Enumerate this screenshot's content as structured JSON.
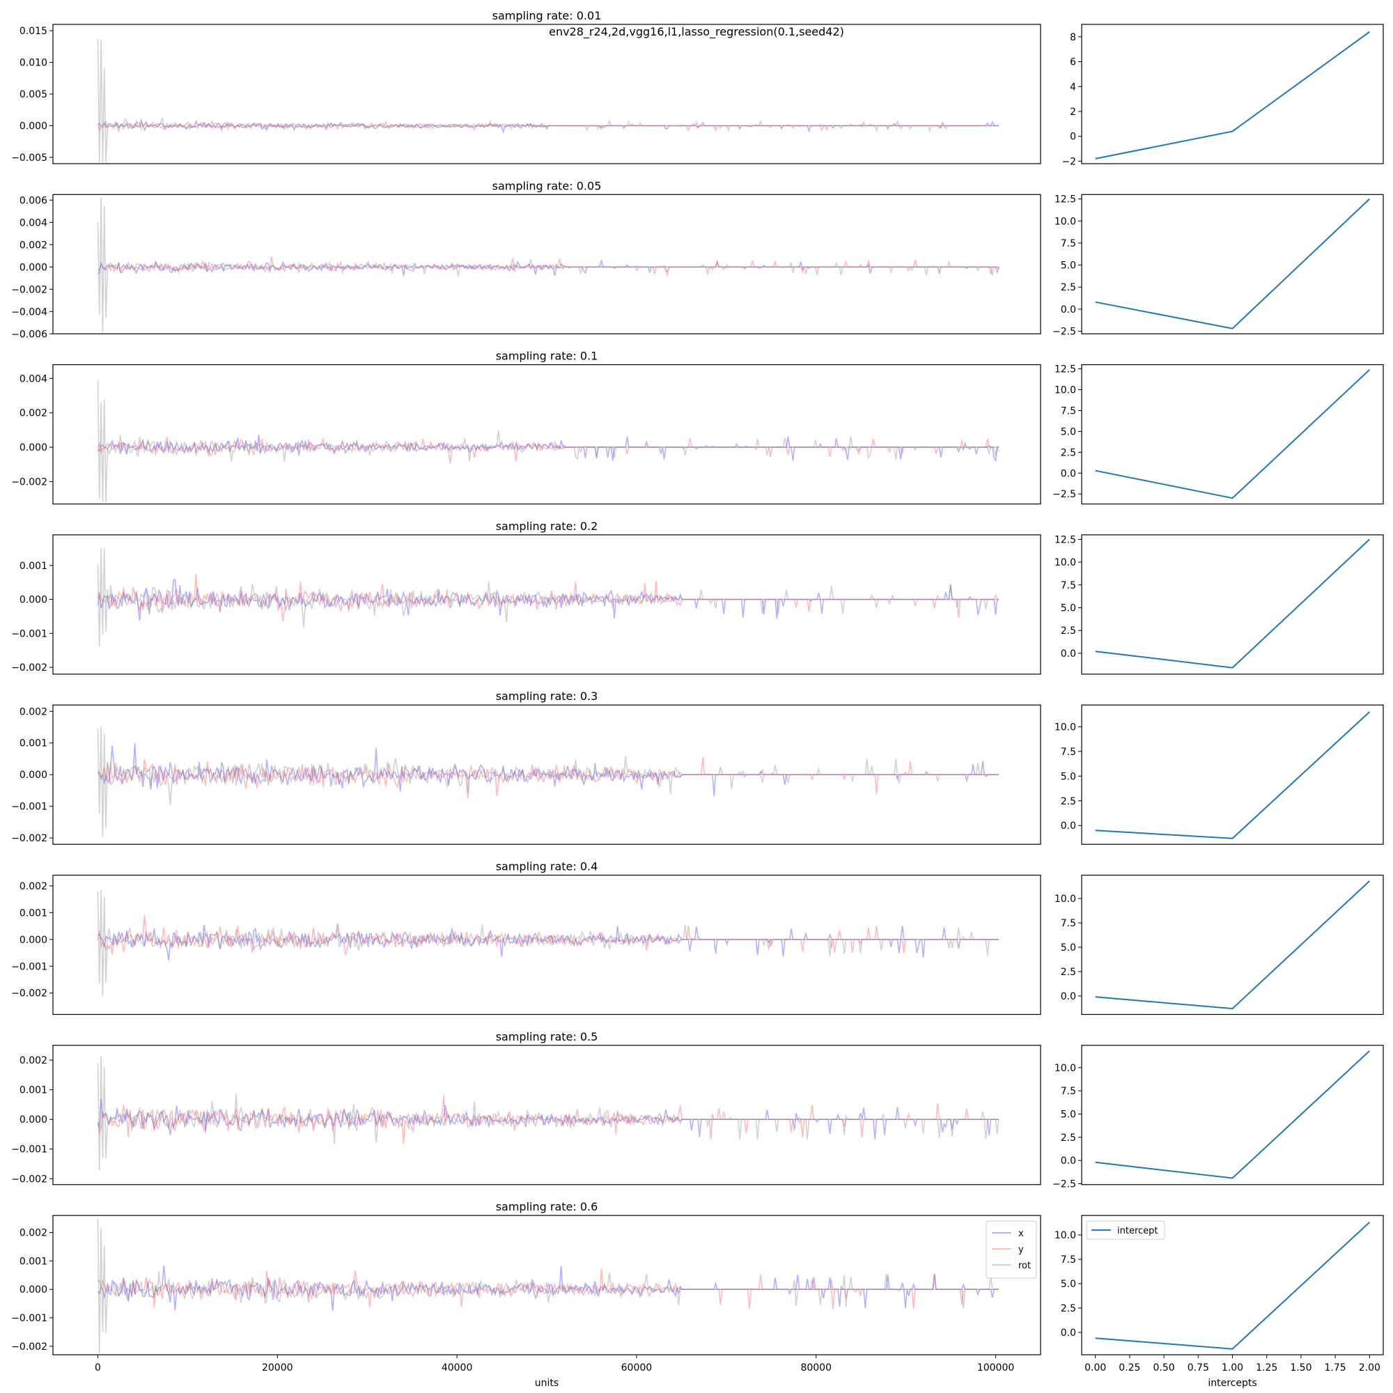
{
  "suptitle": "env28_r24,2d,vgg16,l1,lasso_regression(0.1,seed42)",
  "legend_left": [
    "x",
    "y",
    "rot"
  ],
  "legend_right": [
    "intercept"
  ],
  "colors": {
    "x": "#3333ff",
    "y": "#ff4d4d",
    "rot": "#888888",
    "intercept": "#1f77b4"
  },
  "chart_data": [
    {
      "type": "line",
      "title": "sampling rate: 0.01",
      "panel": "coefficients",
      "ylim": [
        -0.006,
        0.016
      ],
      "yticks": [
        -0.005,
        0.0,
        0.005,
        0.01,
        0.015
      ],
      "ytick_labels": [
        "−0.005",
        "0.000",
        "0.005",
        "0.010",
        "0.015"
      ],
      "xlim": [
        -5000,
        105000
      ],
      "active_until": 50000,
      "amplitude": 0.0006,
      "spike_scale": 0.0009,
      "max_spike": 0.0148,
      "series": [
        "x",
        "y",
        "rot"
      ]
    },
    {
      "type": "line",
      "title": "",
      "panel": "intercepts",
      "x": [
        0,
        1,
        2
      ],
      "y": [
        -1.8,
        0.4,
        8.4
      ],
      "ylim": [
        -2.2,
        9.0
      ],
      "yticks": [
        -2,
        0,
        2,
        4,
        6,
        8
      ],
      "ytick_labels": [
        "−2",
        "0",
        "2",
        "4",
        "6",
        "8"
      ]
    },
    {
      "type": "line",
      "title": "sampling rate: 0.05",
      "panel": "coefficients",
      "ylim": [
        -0.006,
        0.0065
      ],
      "yticks": [
        -0.006,
        -0.004,
        -0.002,
        0.0,
        0.002,
        0.004,
        0.006
      ],
      "ytick_labels": [
        "−0.006",
        "−0.004",
        "−0.002",
        "0.000",
        "0.002",
        "0.004",
        "0.006"
      ],
      "xlim": [
        -5000,
        105000
      ],
      "active_until": 52000,
      "amplitude": 0.00045,
      "spike_scale": 0.0008,
      "max_spike": 0.0064,
      "series": [
        "x",
        "y",
        "rot"
      ]
    },
    {
      "type": "line",
      "title": "",
      "panel": "intercepts",
      "x": [
        0,
        1,
        2
      ],
      "y": [
        0.8,
        -2.2,
        12.5
      ],
      "ylim": [
        -2.8,
        13.0
      ],
      "yticks": [
        -2.5,
        0.0,
        2.5,
        5.0,
        7.5,
        10.0,
        12.5
      ],
      "ytick_labels": [
        "−2.5",
        "0.0",
        "2.5",
        "5.0",
        "7.5",
        "10.0",
        "12.5"
      ]
    },
    {
      "type": "line",
      "title": "sampling rate: 0.1",
      "panel": "coefficients",
      "ylim": [
        -0.0033,
        0.0048
      ],
      "yticks": [
        -0.002,
        0.0,
        0.002,
        0.004
      ],
      "ytick_labels": [
        "−0.002",
        "0.000",
        "0.002",
        "0.004"
      ],
      "xlim": [
        -5000,
        105000
      ],
      "active_until": 52000,
      "amplitude": 0.00045,
      "spike_scale": 0.0008,
      "max_spike": 0.0046,
      "series": [
        "x",
        "y",
        "rot"
      ]
    },
    {
      "type": "line",
      "title": "",
      "panel": "intercepts",
      "x": [
        0,
        1,
        2
      ],
      "y": [
        0.3,
        -3.0,
        12.4
      ],
      "ylim": [
        -3.7,
        13.0
      ],
      "yticks": [
        -2.5,
        0.0,
        2.5,
        5.0,
        7.5,
        10.0,
        12.5
      ],
      "ytick_labels": [
        "−2.5",
        "0.0",
        "2.5",
        "5.0",
        "7.5",
        "10.0",
        "12.5"
      ]
    },
    {
      "type": "line",
      "title": "sampling rate: 0.2",
      "panel": "coefficients",
      "ylim": [
        -0.0022,
        0.0019
      ],
      "yticks": [
        -0.002,
        -0.001,
        0.0,
        0.001
      ],
      "ytick_labels": [
        "−0.002",
        "−0.001",
        "0.000",
        "0.001"
      ],
      "xlim": [
        -5000,
        105000
      ],
      "active_until": 65000,
      "amplitude": 0.00035,
      "spike_scale": 0.0006,
      "max_spike": 0.0016,
      "series": [
        "x",
        "y",
        "rot"
      ]
    },
    {
      "type": "line",
      "title": "",
      "panel": "intercepts",
      "x": [
        0,
        1,
        2
      ],
      "y": [
        0.2,
        -1.6,
        12.5
      ],
      "ylim": [
        -2.3,
        13.0
      ],
      "yticks": [
        0.0,
        2.5,
        5.0,
        7.5,
        10.0,
        12.5
      ],
      "ytick_labels": [
        "0.0",
        "2.5",
        "5.0",
        "7.5",
        "10.0",
        "12.5"
      ]
    },
    {
      "type": "line",
      "title": "sampling rate: 0.3",
      "panel": "coefficients",
      "ylim": [
        -0.0022,
        0.0022
      ],
      "yticks": [
        -0.002,
        -0.001,
        0.0,
        0.001,
        0.002
      ],
      "ytick_labels": [
        "−0.002",
        "−0.001",
        "0.000",
        "0.001",
        "0.002"
      ],
      "xlim": [
        -5000,
        105000
      ],
      "active_until": 65000,
      "amplitude": 0.0004,
      "spike_scale": 0.0007,
      "max_spike": 0.0021,
      "series": [
        "x",
        "y",
        "rot"
      ]
    },
    {
      "type": "line",
      "title": "",
      "panel": "intercepts",
      "x": [
        0,
        1,
        2
      ],
      "y": [
        -0.5,
        -1.3,
        11.5
      ],
      "ylim": [
        -1.9,
        12.2
      ],
      "yticks": [
        0.0,
        2.5,
        5.0,
        7.5,
        10.0
      ],
      "ytick_labels": [
        "0.0",
        "2.5",
        "5.0",
        "7.5",
        "10.0"
      ]
    },
    {
      "type": "line",
      "title": "sampling rate: 0.4",
      "panel": "coefficients",
      "ylim": [
        -0.0028,
        0.0024
      ],
      "yticks": [
        -0.002,
        -0.001,
        0.0,
        0.001,
        0.002
      ],
      "ytick_labels": [
        "−0.002",
        "−0.001",
        "0.000",
        "0.001",
        "0.002"
      ],
      "xlim": [
        -5000,
        105000
      ],
      "active_until": 65000,
      "amplitude": 0.0004,
      "spike_scale": 0.0007,
      "max_spike": 0.0022,
      "series": [
        "x",
        "y",
        "rot"
      ]
    },
    {
      "type": "line",
      "title": "",
      "panel": "intercepts",
      "x": [
        0,
        1,
        2
      ],
      "y": [
        -0.1,
        -1.3,
        11.8
      ],
      "ylim": [
        -1.9,
        12.4
      ],
      "yticks": [
        0.0,
        2.5,
        5.0,
        7.5,
        10.0
      ],
      "ytick_labels": [
        "0.0",
        "2.5",
        "5.0",
        "7.5",
        "10.0"
      ]
    },
    {
      "type": "line",
      "title": "sampling rate: 0.5",
      "panel": "coefficients",
      "ylim": [
        -0.0022,
        0.0025
      ],
      "yticks": [
        -0.002,
        -0.001,
        0.0,
        0.001,
        0.002
      ],
      "ytick_labels": [
        "−0.002",
        "−0.001",
        "0.000",
        "0.001",
        "0.002"
      ],
      "xlim": [
        -5000,
        105000
      ],
      "active_until": 65000,
      "amplitude": 0.0004,
      "spike_scale": 0.0007,
      "max_spike": 0.0023,
      "series": [
        "x",
        "y",
        "rot"
      ]
    },
    {
      "type": "line",
      "title": "",
      "panel": "intercepts",
      "x": [
        0,
        1,
        2
      ],
      "y": [
        -0.2,
        -1.9,
        11.8
      ],
      "ylim": [
        -2.6,
        12.4
      ],
      "yticks": [
        -2.5,
        0.0,
        2.5,
        5.0,
        7.5,
        10.0
      ],
      "ytick_labels": [
        "−2.5",
        "0.0",
        "2.5",
        "5.0",
        "7.5",
        "10.0"
      ]
    },
    {
      "type": "line",
      "title": "sampling rate: 0.6",
      "panel": "coefficients",
      "ylim": [
        -0.0023,
        0.0026
      ],
      "yticks": [
        -0.002,
        -0.001,
        0.0,
        0.001,
        0.002
      ],
      "ytick_labels": [
        "−0.002",
        "−0.001",
        "0.000",
        "0.001",
        "0.002"
      ],
      "xlim": [
        -5000,
        105000
      ],
      "active_until": 65000,
      "amplitude": 0.0004,
      "spike_scale": 0.0007,
      "max_spike": 0.0025,
      "xticks": [
        0,
        20000,
        40000,
        60000,
        80000,
        100000
      ],
      "xtick_labels": [
        "0",
        "20000",
        "40000",
        "60000",
        "80000",
        "100000"
      ],
      "xlabel": "units",
      "series": [
        "x",
        "y",
        "rot"
      ]
    },
    {
      "type": "line",
      "title": "",
      "panel": "intercepts",
      "x": [
        0,
        1,
        2
      ],
      "y": [
        -0.6,
        -1.7,
        11.3
      ],
      "ylim": [
        -2.3,
        12.0
      ],
      "yticks": [
        0.0,
        2.5,
        5.0,
        7.5,
        10.0
      ],
      "ytick_labels": [
        "0.0",
        "2.5",
        "5.0",
        "7.5",
        "10.0"
      ],
      "xticks": [
        0.0,
        0.25,
        0.5,
        0.75,
        1.0,
        1.25,
        1.5,
        1.75,
        2.0
      ],
      "xtick_labels": [
        "0.00",
        "0.25",
        "0.50",
        "0.75",
        "1.00",
        "1.25",
        "1.50",
        "1.75",
        "2.00"
      ],
      "xlabel": "intercepts"
    }
  ]
}
